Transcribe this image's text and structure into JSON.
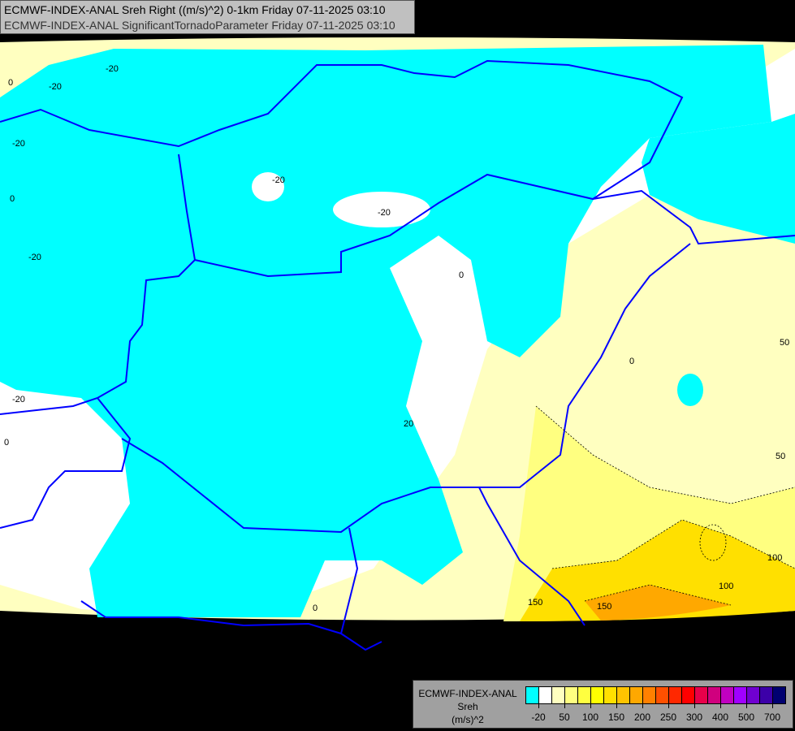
{
  "title": {
    "line1": "ECMWF-INDEX-ANAL Sreh Right ((m/s)^2) 0-1km Friday 07-11-2025 03:10",
    "line2": "ECMWF-INDEX-ANAL SignificantTornadoParameter Friday 07-11-2025 03:10"
  },
  "legend": {
    "model": "ECMWF-INDEX-ANAL",
    "variable": "Sreh",
    "unit": "(m/s)^2",
    "colors": [
      "#00ffff",
      "#ffffff",
      "#ffffc0",
      "#ffff80",
      "#ffff40",
      "#ffff00",
      "#ffe000",
      "#ffc400",
      "#ffa800",
      "#ff8000",
      "#ff5000",
      "#ff2800",
      "#ff0000",
      "#e8004a",
      "#d0007e",
      "#c000c0",
      "#a000ff",
      "#7000d0",
      "#3c00a8",
      "#000070"
    ],
    "ticks": [
      "-20",
      "50",
      "100",
      "150",
      "200",
      "250",
      "300",
      "400",
      "500",
      "700"
    ]
  },
  "contour_labels": [
    "-20",
    "-20",
    "-20",
    "-20",
    "-20",
    "-20",
    "-20",
    "0",
    "0",
    "0",
    "0",
    "0",
    "0",
    "20",
    "50",
    "50",
    "100",
    "100",
    "150",
    "150"
  ],
  "colors": {
    "background": "#000000",
    "border": "#0000ff",
    "river": "#6f8fd0",
    "negative": "#00ffff",
    "low": "#ffffc0"
  }
}
